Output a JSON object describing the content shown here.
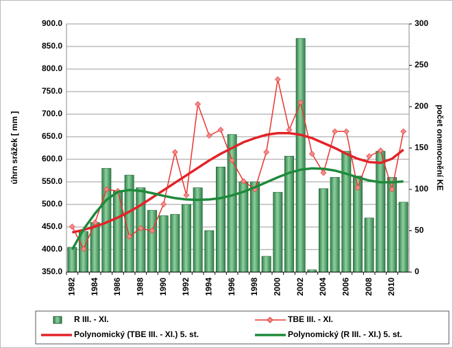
{
  "chart_data": {
    "type": "bar",
    "y_label": "úhrn srážek [ mm ]",
    "y2_label": "počet onemocnění KE",
    "categories": [
      "1982",
      null,
      "1984",
      null,
      "1986",
      null,
      "1988",
      null,
      "1990",
      null,
      "1992",
      null,
      "1994",
      null,
      "1996",
      null,
      "1998",
      null,
      "2000",
      null,
      "2002",
      null,
      "2004",
      null,
      "2006",
      null,
      "2008",
      null,
      "2010",
      null
    ],
    "ylim": [
      350,
      900
    ],
    "yticks": [
      {
        "value": 350,
        "label": "350.0"
      },
      {
        "value": 400,
        "label": "400.0"
      },
      {
        "value": 450,
        "label": "450.0"
      },
      {
        "value": 500,
        "label": "500.0"
      },
      {
        "value": 550,
        "label": "550.0"
      },
      {
        "value": 600,
        "label": "600.0"
      },
      {
        "value": 650,
        "label": "650.0"
      },
      {
        "value": 700,
        "label": "700.0"
      },
      {
        "value": 750,
        "label": "750.0"
      },
      {
        "value": 800,
        "label": "800.0"
      },
      {
        "value": 850,
        "label": "850.0"
      },
      {
        "value": 900,
        "label": "900.0"
      }
    ],
    "y2lim": [
      0,
      300
    ],
    "y2ticks": [
      0,
      50,
      100,
      150,
      200,
      250,
      300
    ],
    "grid": true,
    "series": [
      {
        "name": "R III. - XI.",
        "type": "bar",
        "color": "#3e9e5c",
        "values": [
          405,
          440,
          460,
          580,
          530,
          565,
          537,
          487,
          475,
          478,
          500,
          537,
          442,
          583,
          655,
          550,
          550,
          385,
          527,
          607,
          868,
          355,
          535,
          560,
          618,
          563,
          470,
          618,
          560,
          505
        ]
      },
      {
        "name": "TBE III. - XI.",
        "type": "line",
        "axis": "y2",
        "color": "#e8342e",
        "marker_color": "#f08a8a",
        "values": [
          55,
          28,
          60,
          100,
          98,
          43,
          53,
          50,
          82,
          145,
          93,
          203,
          165,
          172,
          135,
          110,
          100,
          145,
          233,
          172,
          205,
          143,
          120,
          170,
          170,
          102,
          140,
          147,
          100,
          170
        ]
      },
      {
        "name": "Polynomický (TBE III. - XI.) 5. st.",
        "type": "line",
        "axis": "y2",
        "color": "#e32227",
        "values": [
          48,
          51,
          55,
          60,
          66,
          73,
          81,
          90,
          99,
          108,
          117,
          126,
          135,
          143,
          150,
          157,
          162,
          166,
          168,
          168,
          166,
          162,
          156,
          150,
          143,
          137,
          133,
          132,
          137,
          148
        ]
      },
      {
        "name": "Polynomický (R III. - XI.) 5. st.",
        "type": "line",
        "color": "#1e8a3a",
        "values": [
          400,
          445,
          480,
          510,
          528,
          532,
          530,
          525,
          519,
          514,
          511,
          510,
          511,
          514,
          520,
          528,
          538,
          549,
          560,
          570,
          577,
          580,
          579,
          575,
          568,
          560,
          553,
          549,
          549,
          551
        ]
      }
    ]
  }
}
